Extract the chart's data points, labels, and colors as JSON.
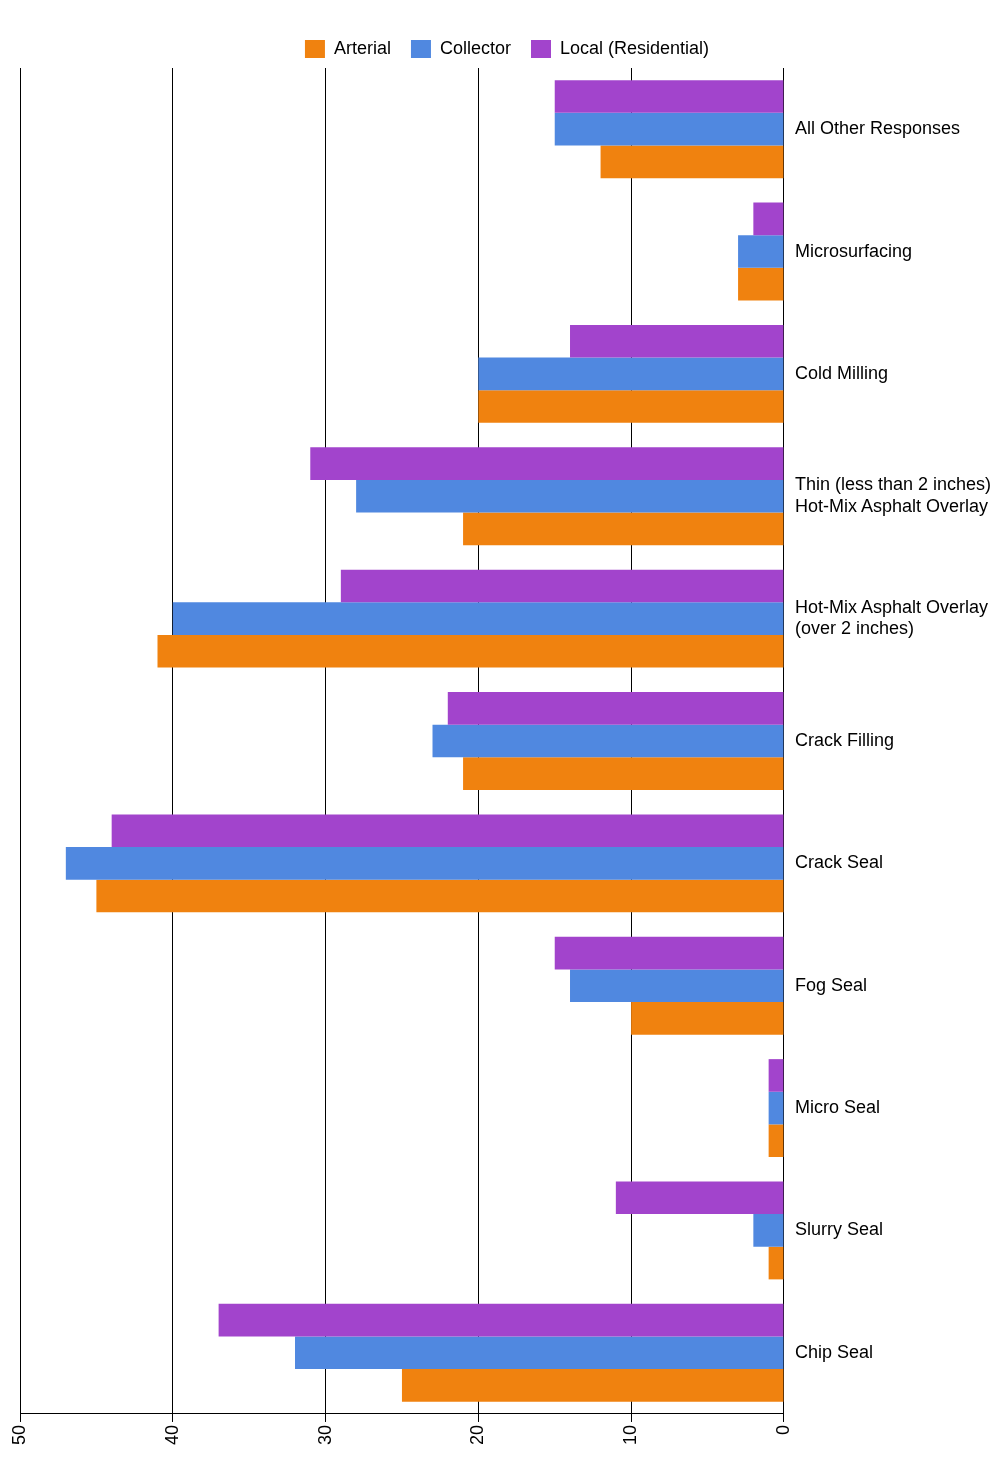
{
  "chart_data": {
    "type": "bar",
    "orientation": "horizontal",
    "categories": [
      "All Other Responses",
      "Microsurfacing",
      "Cold Milling",
      "Thin (less than 2 inches) Hot-Mix Asphalt Overlay",
      "Hot-Mix Asphalt Overlay (over 2 inches)",
      "Crack Filling",
      "Crack Seal",
      "Fog Seal",
      "Micro Seal",
      "Slurry Seal",
      "Chip Seal"
    ],
    "series": [
      {
        "name": "Arterial",
        "color": "#f0820f",
        "values": [
          12,
          3,
          20,
          21,
          41,
          21,
          45,
          10,
          1,
          1,
          25
        ]
      },
      {
        "name": "Collector",
        "color": "#5088e0",
        "values": [
          15,
          3,
          20,
          28,
          40,
          23,
          47,
          14,
          1,
          2,
          32
        ]
      },
      {
        "name": "Local (Residential)",
        "color": "#a244cc",
        "values": [
          15,
          2,
          14,
          31,
          29,
          22,
          44,
          15,
          1,
          11,
          37
        ]
      }
    ],
    "xlim": [
      50,
      0
    ],
    "xticks": [
      0,
      10,
      20,
      30,
      40,
      50
    ],
    "grid": "x",
    "legend": "top"
  }
}
